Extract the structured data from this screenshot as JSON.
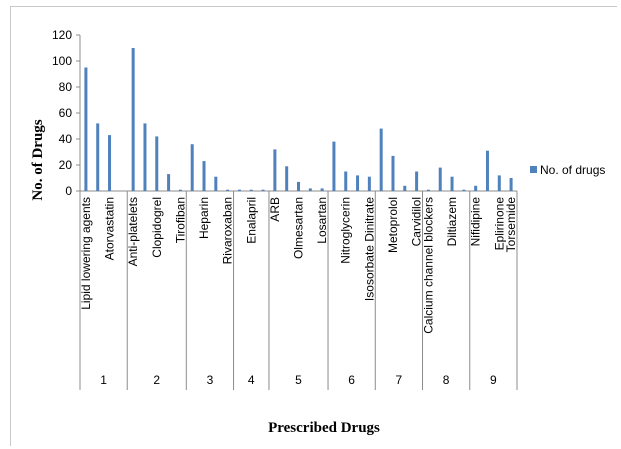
{
  "chart_data": {
    "type": "bar",
    "title": "",
    "xlabel": "Prescribed Drugs",
    "ylabel": "No. of Drugs",
    "ylim": [
      0,
      120
    ],
    "yticks": [
      "0",
      "20",
      "40",
      "60",
      "80",
      "100",
      "120"
    ],
    "legend": {
      "position": "right",
      "label": "No. of drugs"
    },
    "colors": {
      "bar": "#4f81bd",
      "axis": "#8c8c8c"
    },
    "groups": [
      "1",
      "2",
      "3",
      "4",
      "5",
      "6",
      "7",
      "8",
      "9"
    ],
    "group_sizes": [
      4,
      5,
      4,
      3,
      5,
      4,
      4,
      4,
      4
    ],
    "categories": [
      "Lipid lowering agents",
      "",
      "Atorvastatin",
      "",
      "Anti-platelets",
      "",
      "Clopidogrel",
      "",
      "Tirofiban",
      "",
      "Heparin",
      "",
      "Rivaroxaban",
      "",
      "Enalapril",
      "",
      "ARB",
      "",
      "Olmesartan",
      "",
      "Losartan",
      "",
      "Nitroglycerin",
      "",
      "Isosorbate Dinitrate",
      "",
      "Metoprolol",
      "",
      "Carvidilol",
      "Calcium channel blockers",
      "",
      "Diltiazem",
      "",
      "Nifidipine",
      "",
      "Eplirinone",
      "Torsemide"
    ],
    "series": [
      {
        "name": "No. of drugs",
        "values": [
          95,
          52,
          43,
          0,
          110,
          52,
          42,
          13,
          1,
          36,
          23,
          11,
          1,
          1,
          1,
          1,
          32,
          19,
          7,
          2,
          2,
          38,
          15,
          12,
          11,
          48,
          27,
          4,
          15,
          1,
          18,
          11,
          1,
          4,
          31,
          12,
          10
        ]
      }
    ]
  }
}
